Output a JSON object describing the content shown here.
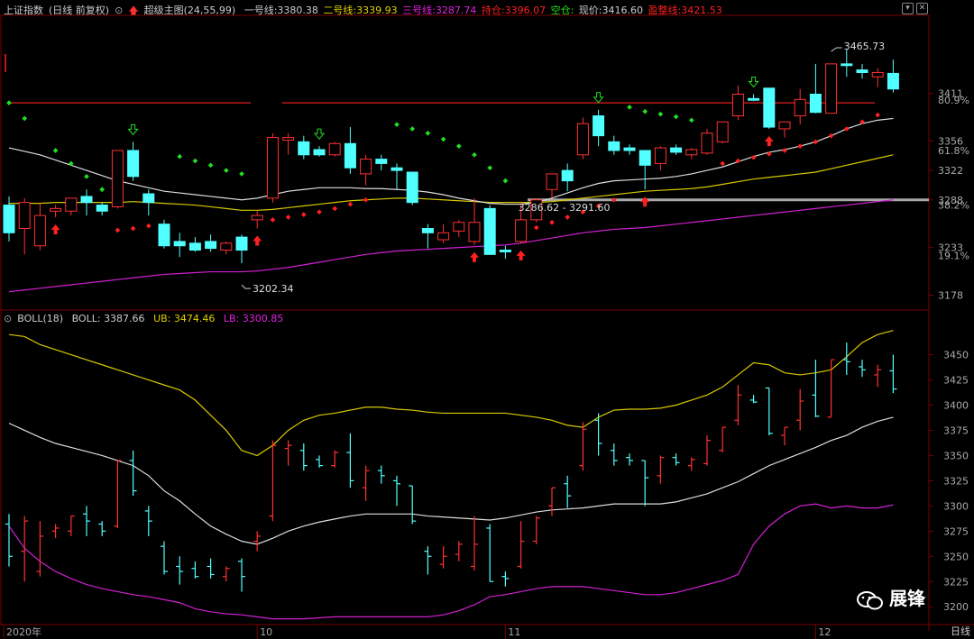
{
  "header": {
    "index_name": "上证指数",
    "period_mode": "(日线 前复权)",
    "indicator_name": "超级主图(24,55,99)",
    "line1": {
      "label": "一号线:",
      "value": "3380.38",
      "color": "#dddddd"
    },
    "line2": {
      "label": "二号线:",
      "value": "3339.93",
      "color": "#e0d000"
    },
    "line3": {
      "label": "三号线:",
      "value": "3287.74",
      "color": "#e020e0"
    },
    "hold": {
      "label": "持仓:",
      "value": "3396.07",
      "color": "#ff2020"
    },
    "empty": {
      "label": "空仓:",
      "value": "",
      "color": "#20e020"
    },
    "price": {
      "label": "现价:",
      "value": "3416.60",
      "color": "#dddddd"
    },
    "profit": {
      "label": "盈整线:",
      "value": "3421.53",
      "color": "#ff2020"
    }
  },
  "lower_header": {
    "indicator": "BOLL(18)",
    "boll": {
      "label": "BOLL:",
      "value": "3387.66",
      "color": "#dddddd"
    },
    "ub": {
      "label": "UB:",
      "value": "3474.46",
      "color": "#e0d000"
    },
    "lb": {
      "label": "LB:",
      "value": "3300.85",
      "color": "#e020e0"
    }
  },
  "period_label": "日线",
  "watermark": "展锋",
  "colors": {
    "up": "#ff3030",
    "down": "#50ffff",
    "line1": "#dddddd",
    "line2": "#d8c800",
    "line3": "#d020d0",
    "sar_down": "#20e020",
    "sar_up": "#ff2020",
    "grid": "#7a0000",
    "axis_text": "#aaaaaa"
  },
  "chart_data": [
    {
      "type": "candlestick",
      "title": "上证指数 超级主图",
      "ylim": [
        3165,
        3500
      ],
      "y_ticks": [
        "3411",
        "3356",
        "3322",
        "3288",
        "3233",
        "3178"
      ],
      "pct_ticks": [
        "80.9%",
        "61.8%",
        "38.2%",
        "19.1%"
      ],
      "pct_tick_values": [
        3403,
        3345,
        3282,
        3224
      ],
      "x_tick_labels": [
        "2020年",
        "10",
        "11",
        "12"
      ],
      "x_tick_index": [
        0,
        16,
        32,
        52
      ],
      "annotations": [
        {
          "text": "3465.73",
          "index": 53,
          "value": 3465.73
        },
        {
          "text": "3202.34",
          "index": 15,
          "value": 3202.34
        },
        {
          "text": "3286.62 - 3291.60",
          "index": 33,
          "value": 3288
        }
      ],
      "hline_red": 3400,
      "hline_gray": 3288,
      "candles": [
        {
          "o": 3282,
          "h": 3292,
          "l": 3240,
          "c": 3250
        },
        {
          "o": 3255,
          "h": 3290,
          "l": 3225,
          "c": 3285
        },
        {
          "o": 3235,
          "h": 3285,
          "l": 3230,
          "c": 3270
        },
        {
          "o": 3275,
          "h": 3282,
          "l": 3268,
          "c": 3278
        },
        {
          "o": 3275,
          "h": 3290,
          "l": 3270,
          "c": 3290
        },
        {
          "o": 3292,
          "h": 3300,
          "l": 3270,
          "c": 3285
        },
        {
          "o": 3282,
          "h": 3285,
          "l": 3270,
          "c": 3275
        },
        {
          "o": 3280,
          "h": 3345,
          "l": 3278,
          "c": 3345
        },
        {
          "o": 3345,
          "h": 3355,
          "l": 3310,
          "c": 3315
        },
        {
          "o": 3295,
          "h": 3300,
          "l": 3270,
          "c": 3285
        },
        {
          "o": 3260,
          "h": 3265,
          "l": 3232,
          "c": 3235
        },
        {
          "o": 3240,
          "h": 3250,
          "l": 3222,
          "c": 3235
        },
        {
          "o": 3238,
          "h": 3245,
          "l": 3228,
          "c": 3230
        },
        {
          "o": 3240,
          "h": 3248,
          "l": 3228,
          "c": 3232
        },
        {
          "o": 3230,
          "h": 3240,
          "l": 3225,
          "c": 3238
        },
        {
          "o": 3245,
          "h": 3248,
          "l": 3215,
          "c": 3230
        },
        {
          "o": 3265,
          "h": 3275,
          "l": 3255,
          "c": 3270
        },
        {
          "o": 3290,
          "h": 3365,
          "l": 3285,
          "c": 3360
        },
        {
          "o": 3357,
          "h": 3365,
          "l": 3340,
          "c": 3360
        },
        {
          "o": 3355,
          "h": 3362,
          "l": 3335,
          "c": 3340
        },
        {
          "o": 3346,
          "h": 3350,
          "l": 3338,
          "c": 3340
        },
        {
          "o": 3340,
          "h": 3355,
          "l": 3338,
          "c": 3353
        },
        {
          "o": 3353,
          "h": 3372,
          "l": 3318,
          "c": 3325
        },
        {
          "o": 3318,
          "h": 3340,
          "l": 3305,
          "c": 3335
        },
        {
          "o": 3335,
          "h": 3340,
          "l": 3322,
          "c": 3330
        },
        {
          "o": 3325,
          "h": 3330,
          "l": 3300,
          "c": 3322
        },
        {
          "o": 3320,
          "h": 3320,
          "l": 3282,
          "c": 3285
        },
        {
          "o": 3255,
          "h": 3260,
          "l": 3232,
          "c": 3250
        },
        {
          "o": 3242,
          "h": 3260,
          "l": 3238,
          "c": 3250
        },
        {
          "o": 3252,
          "h": 3265,
          "l": 3245,
          "c": 3262
        },
        {
          "o": 3240,
          "h": 3290,
          "l": 3236,
          "c": 3262
        },
        {
          "o": 3278,
          "h": 3282,
          "l": 3225,
          "c": 3225
        },
        {
          "o": 3230,
          "h": 3235,
          "l": 3220,
          "c": 3228
        },
        {
          "o": 3240,
          "h": 3285,
          "l": 3238,
          "c": 3265
        },
        {
          "o": 3265,
          "h": 3290,
          "l": 3262,
          "c": 3288
        },
        {
          "o": 3300,
          "h": 3318,
          "l": 3290,
          "c": 3318
        },
        {
          "o": 3322,
          "h": 3330,
          "l": 3298,
          "c": 3310
        },
        {
          "o": 3340,
          "h": 3383,
          "l": 3335,
          "c": 3376
        },
        {
          "o": 3385,
          "h": 3392,
          "l": 3350,
          "c": 3362
        },
        {
          "o": 3355,
          "h": 3362,
          "l": 3340,
          "c": 3345
        },
        {
          "o": 3348,
          "h": 3352,
          "l": 3340,
          "c": 3345
        },
        {
          "o": 3345,
          "h": 3345,
          "l": 3300,
          "c": 3328
        },
        {
          "o": 3330,
          "h": 3350,
          "l": 3322,
          "c": 3348
        },
        {
          "o": 3348,
          "h": 3352,
          "l": 3340,
          "c": 3343
        },
        {
          "o": 3340,
          "h": 3348,
          "l": 3335,
          "c": 3346
        },
        {
          "o": 3342,
          "h": 3370,
          "l": 3340,
          "c": 3365
        },
        {
          "o": 3355,
          "h": 3378,
          "l": 3353,
          "c": 3378
        },
        {
          "o": 3385,
          "h": 3420,
          "l": 3380,
          "c": 3410
        },
        {
          "o": 3405,
          "h": 3410,
          "l": 3402,
          "c": 3403
        },
        {
          "o": 3417,
          "h": 3417,
          "l": 3370,
          "c": 3372
        },
        {
          "o": 3370,
          "h": 3378,
          "l": 3360,
          "c": 3378
        },
        {
          "o": 3385,
          "h": 3416,
          "l": 3375,
          "c": 3404
        },
        {
          "o": 3410,
          "h": 3445,
          "l": 3388,
          "c": 3389
        },
        {
          "o": 3388,
          "h": 3445,
          "l": 3388,
          "c": 3445
        },
        {
          "o": 3445,
          "h": 3462,
          "l": 3430,
          "c": 3443
        },
        {
          "o": 3438,
          "h": 3445,
          "l": 3428,
          "c": 3435
        },
        {
          "o": 3430,
          "h": 3440,
          "l": 3418,
          "c": 3435
        },
        {
          "o": 3434,
          "h": 3450,
          "l": 3412,
          "c": 3416
        }
      ],
      "line1": [
        3348,
        3344,
        3340,
        3334,
        3328,
        3322,
        3316,
        3310,
        3306,
        3302,
        3298,
        3296,
        3294,
        3292,
        3290,
        3288,
        3290,
        3294,
        3298,
        3300,
        3302,
        3302,
        3302,
        3301,
        3301,
        3300,
        3299,
        3297,
        3294,
        3290,
        3287,
        3284,
        3283,
        3283,
        3285,
        3290,
        3296,
        3302,
        3307,
        3310,
        3311,
        3312,
        3313,
        3315,
        3318,
        3322,
        3326,
        3332,
        3338,
        3343,
        3346,
        3350,
        3355,
        3362,
        3370,
        3376,
        3380,
        3382
      ],
      "line2": [
        3284,
        3284,
        3284,
        3285,
        3285,
        3285,
        3285,
        3285,
        3286,
        3285,
        3284,
        3283,
        3282,
        3280,
        3278,
        3276,
        3276,
        3277,
        3279,
        3281,
        3283,
        3285,
        3287,
        3288,
        3289,
        3290,
        3290,
        3289,
        3288,
        3287,
        3286,
        3285,
        3285,
        3285,
        3285,
        3286,
        3288,
        3290,
        3292,
        3294,
        3296,
        3298,
        3299,
        3300,
        3301,
        3303,
        3306,
        3309,
        3312,
        3314,
        3316,
        3318,
        3320,
        3324,
        3328,
        3332,
        3336,
        3340
      ],
      "line3": [
        3182,
        3184,
        3186,
        3188,
        3190,
        3192,
        3194,
        3196,
        3198,
        3200,
        3202,
        3203,
        3204,
        3205,
        3205,
        3205,
        3206,
        3208,
        3210,
        3213,
        3216,
        3219,
        3222,
        3225,
        3227,
        3229,
        3230,
        3231,
        3232,
        3233,
        3234,
        3235,
        3236,
        3238,
        3241,
        3244,
        3247,
        3250,
        3252,
        3254,
        3255,
        3256,
        3258,
        3260,
        3262,
        3264,
        3266,
        3268,
        3270,
        3272,
        3274,
        3276,
        3278,
        3280,
        3282,
        3284,
        3286,
        3288
      ],
      "sar_down": [
        [
          0,
          3400
        ],
        [
          1,
          3382
        ],
        [
          3,
          3345
        ],
        [
          4,
          3330
        ],
        [
          5,
          3315
        ],
        [
          6,
          3300
        ],
        [
          7,
          3300
        ],
        [
          11,
          3338
        ],
        [
          12,
          3333
        ],
        [
          13,
          3328
        ],
        [
          14,
          3322
        ],
        [
          15,
          3318
        ],
        [
          25,
          3375
        ],
        [
          26,
          3370
        ],
        [
          27,
          3365
        ],
        [
          28,
          3358
        ],
        [
          29,
          3350
        ],
        [
          30,
          3340
        ],
        [
          31,
          3325
        ],
        [
          32,
          3310
        ],
        [
          40,
          3395
        ],
        [
          41,
          3390
        ],
        [
          42,
          3387
        ],
        [
          43,
          3384
        ],
        [
          44,
          3380
        ]
      ],
      "sar_up": [
        [
          7,
          3253
        ],
        [
          8,
          3255
        ],
        [
          9,
          3258
        ],
        [
          17,
          3265
        ],
        [
          18,
          3268
        ],
        [
          19,
          3271
        ],
        [
          20,
          3274
        ],
        [
          21,
          3278
        ],
        [
          22,
          3283
        ],
        [
          23,
          3288
        ],
        [
          33,
          3250
        ],
        [
          34,
          3256
        ],
        [
          35,
          3262
        ],
        [
          36,
          3268
        ],
        [
          37,
          3274
        ],
        [
          38,
          3281
        ],
        [
          39,
          3288
        ],
        [
          46,
          3330
        ],
        [
          47,
          3333
        ],
        [
          48,
          3337
        ],
        [
          49,
          3341
        ],
        [
          50,
          3345
        ],
        [
          51,
          3350
        ],
        [
          52,
          3355
        ],
        [
          53,
          3362
        ],
        [
          54,
          3370
        ],
        [
          55,
          3378
        ],
        [
          56,
          3386
        ]
      ],
      "arrows_up": [
        3,
        16,
        30,
        33,
        41,
        49
      ],
      "arrows_down": [
        8,
        20,
        38,
        48
      ]
    },
    {
      "type": "ohlc",
      "title": "BOLL(18)",
      "ylim": [
        3185,
        3480
      ],
      "y_ticks": [
        "3450",
        "3425",
        "3400",
        "3375",
        "3350",
        "3325",
        "3300",
        "3275",
        "3250",
        "3225",
        "3200"
      ],
      "y_tick_values": [
        3450,
        3425,
        3400,
        3375,
        3350,
        3325,
        3300,
        3275,
        3250,
        3225,
        3200
      ],
      "ub": [
        3470,
        3468,
        3460,
        3455,
        3450,
        3445,
        3440,
        3435,
        3430,
        3425,
        3420,
        3415,
        3405,
        3390,
        3375,
        3355,
        3350,
        3360,
        3375,
        3385,
        3390,
        3392,
        3395,
        3398,
        3398,
        3396,
        3395,
        3393,
        3392,
        3392,
        3392,
        3392,
        3392,
        3390,
        3388,
        3385,
        3380,
        3378,
        3388,
        3395,
        3396,
        3396,
        3397,
        3400,
        3405,
        3410,
        3418,
        3430,
        3442,
        3440,
        3432,
        3430,
        3432,
        3435,
        3448,
        3462,
        3470,
        3474
      ],
      "mid": [
        3382,
        3375,
        3368,
        3362,
        3358,
        3354,
        3350,
        3345,
        3340,
        3330,
        3315,
        3305,
        3292,
        3280,
        3272,
        3265,
        3262,
        3268,
        3275,
        3280,
        3284,
        3287,
        3290,
        3292,
        3292,
        3292,
        3292,
        3290,
        3289,
        3288,
        3287,
        3286,
        3288,
        3291,
        3294,
        3296,
        3297,
        3298,
        3300,
        3302,
        3302,
        3302,
        3302,
        3304,
        3308,
        3312,
        3318,
        3324,
        3332,
        3340,
        3346,
        3352,
        3358,
        3365,
        3370,
        3378,
        3384,
        3388
      ],
      "lb": [
        3280,
        3258,
        3245,
        3235,
        3228,
        3222,
        3218,
        3215,
        3212,
        3210,
        3207,
        3204,
        3198,
        3195,
        3193,
        3192,
        3190,
        3188,
        3188,
        3188,
        3189,
        3190,
        3190,
        3190,
        3190,
        3190,
        3190,
        3190,
        3192,
        3196,
        3202,
        3210,
        3212,
        3215,
        3218,
        3220,
        3220,
        3220,
        3218,
        3216,
        3214,
        3212,
        3212,
        3214,
        3218,
        3222,
        3226,
        3232,
        3262,
        3280,
        3292,
        3300,
        3302,
        3298,
        3300,
        3298,
        3298,
        3301
      ]
    }
  ]
}
